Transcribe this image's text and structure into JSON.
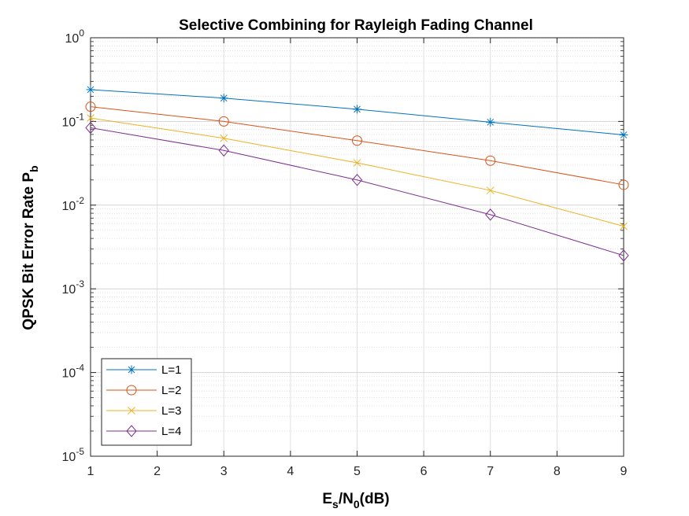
{
  "chart_data": {
    "type": "line",
    "title": "Selective Combining for Rayleigh Fading Channel",
    "xlabel": {
      "main": "E",
      "sub1": "s",
      "mid": "/N",
      "sub2": "0",
      "tail": "(dB)"
    },
    "ylabel": {
      "main": "QPSK Bit Error Rate P",
      "sub": "b"
    },
    "x_scale": "linear",
    "y_scale": "log",
    "xlim": [
      1,
      9
    ],
    "ylim": [
      1e-05,
      1
    ],
    "x_ticks": [
      "1",
      "2",
      "3",
      "4",
      "5",
      "6",
      "7",
      "8",
      "9"
    ],
    "y_ticks": [
      {
        "value": 1e-05,
        "base": "10",
        "exp": "-5"
      },
      {
        "value": 0.0001,
        "base": "10",
        "exp": "-4"
      },
      {
        "value": 0.001,
        "base": "10",
        "exp": "-3"
      },
      {
        "value": 0.01,
        "base": "10",
        "exp": "-2"
      },
      {
        "value": 0.1,
        "base": "10",
        "exp": "-1"
      },
      {
        "value": 1,
        "base": "10",
        "exp": "0"
      }
    ],
    "grid": true,
    "minor_grid": true,
    "legend_position": "bottom-left",
    "x": [
      1,
      3,
      5,
      7,
      9
    ],
    "series": [
      {
        "name": "L=1",
        "color": "#0072BD",
        "marker": "asterisk",
        "values": [
          0.24,
          0.19,
          0.14,
          0.098,
          0.069
        ]
      },
      {
        "name": "L=2",
        "color": "#D95319",
        "marker": "circle",
        "values": [
          0.15,
          0.1,
          0.059,
          0.034,
          0.0175
        ]
      },
      {
        "name": "L=3",
        "color": "#EDB120",
        "marker": "cross",
        "values": [
          0.11,
          0.063,
          0.032,
          0.015,
          0.0056
        ]
      },
      {
        "name": "L=4",
        "color": "#7E2F8E",
        "marker": "diamond",
        "values": [
          0.084,
          0.045,
          0.02,
          0.0077,
          0.0025
        ]
      }
    ]
  }
}
